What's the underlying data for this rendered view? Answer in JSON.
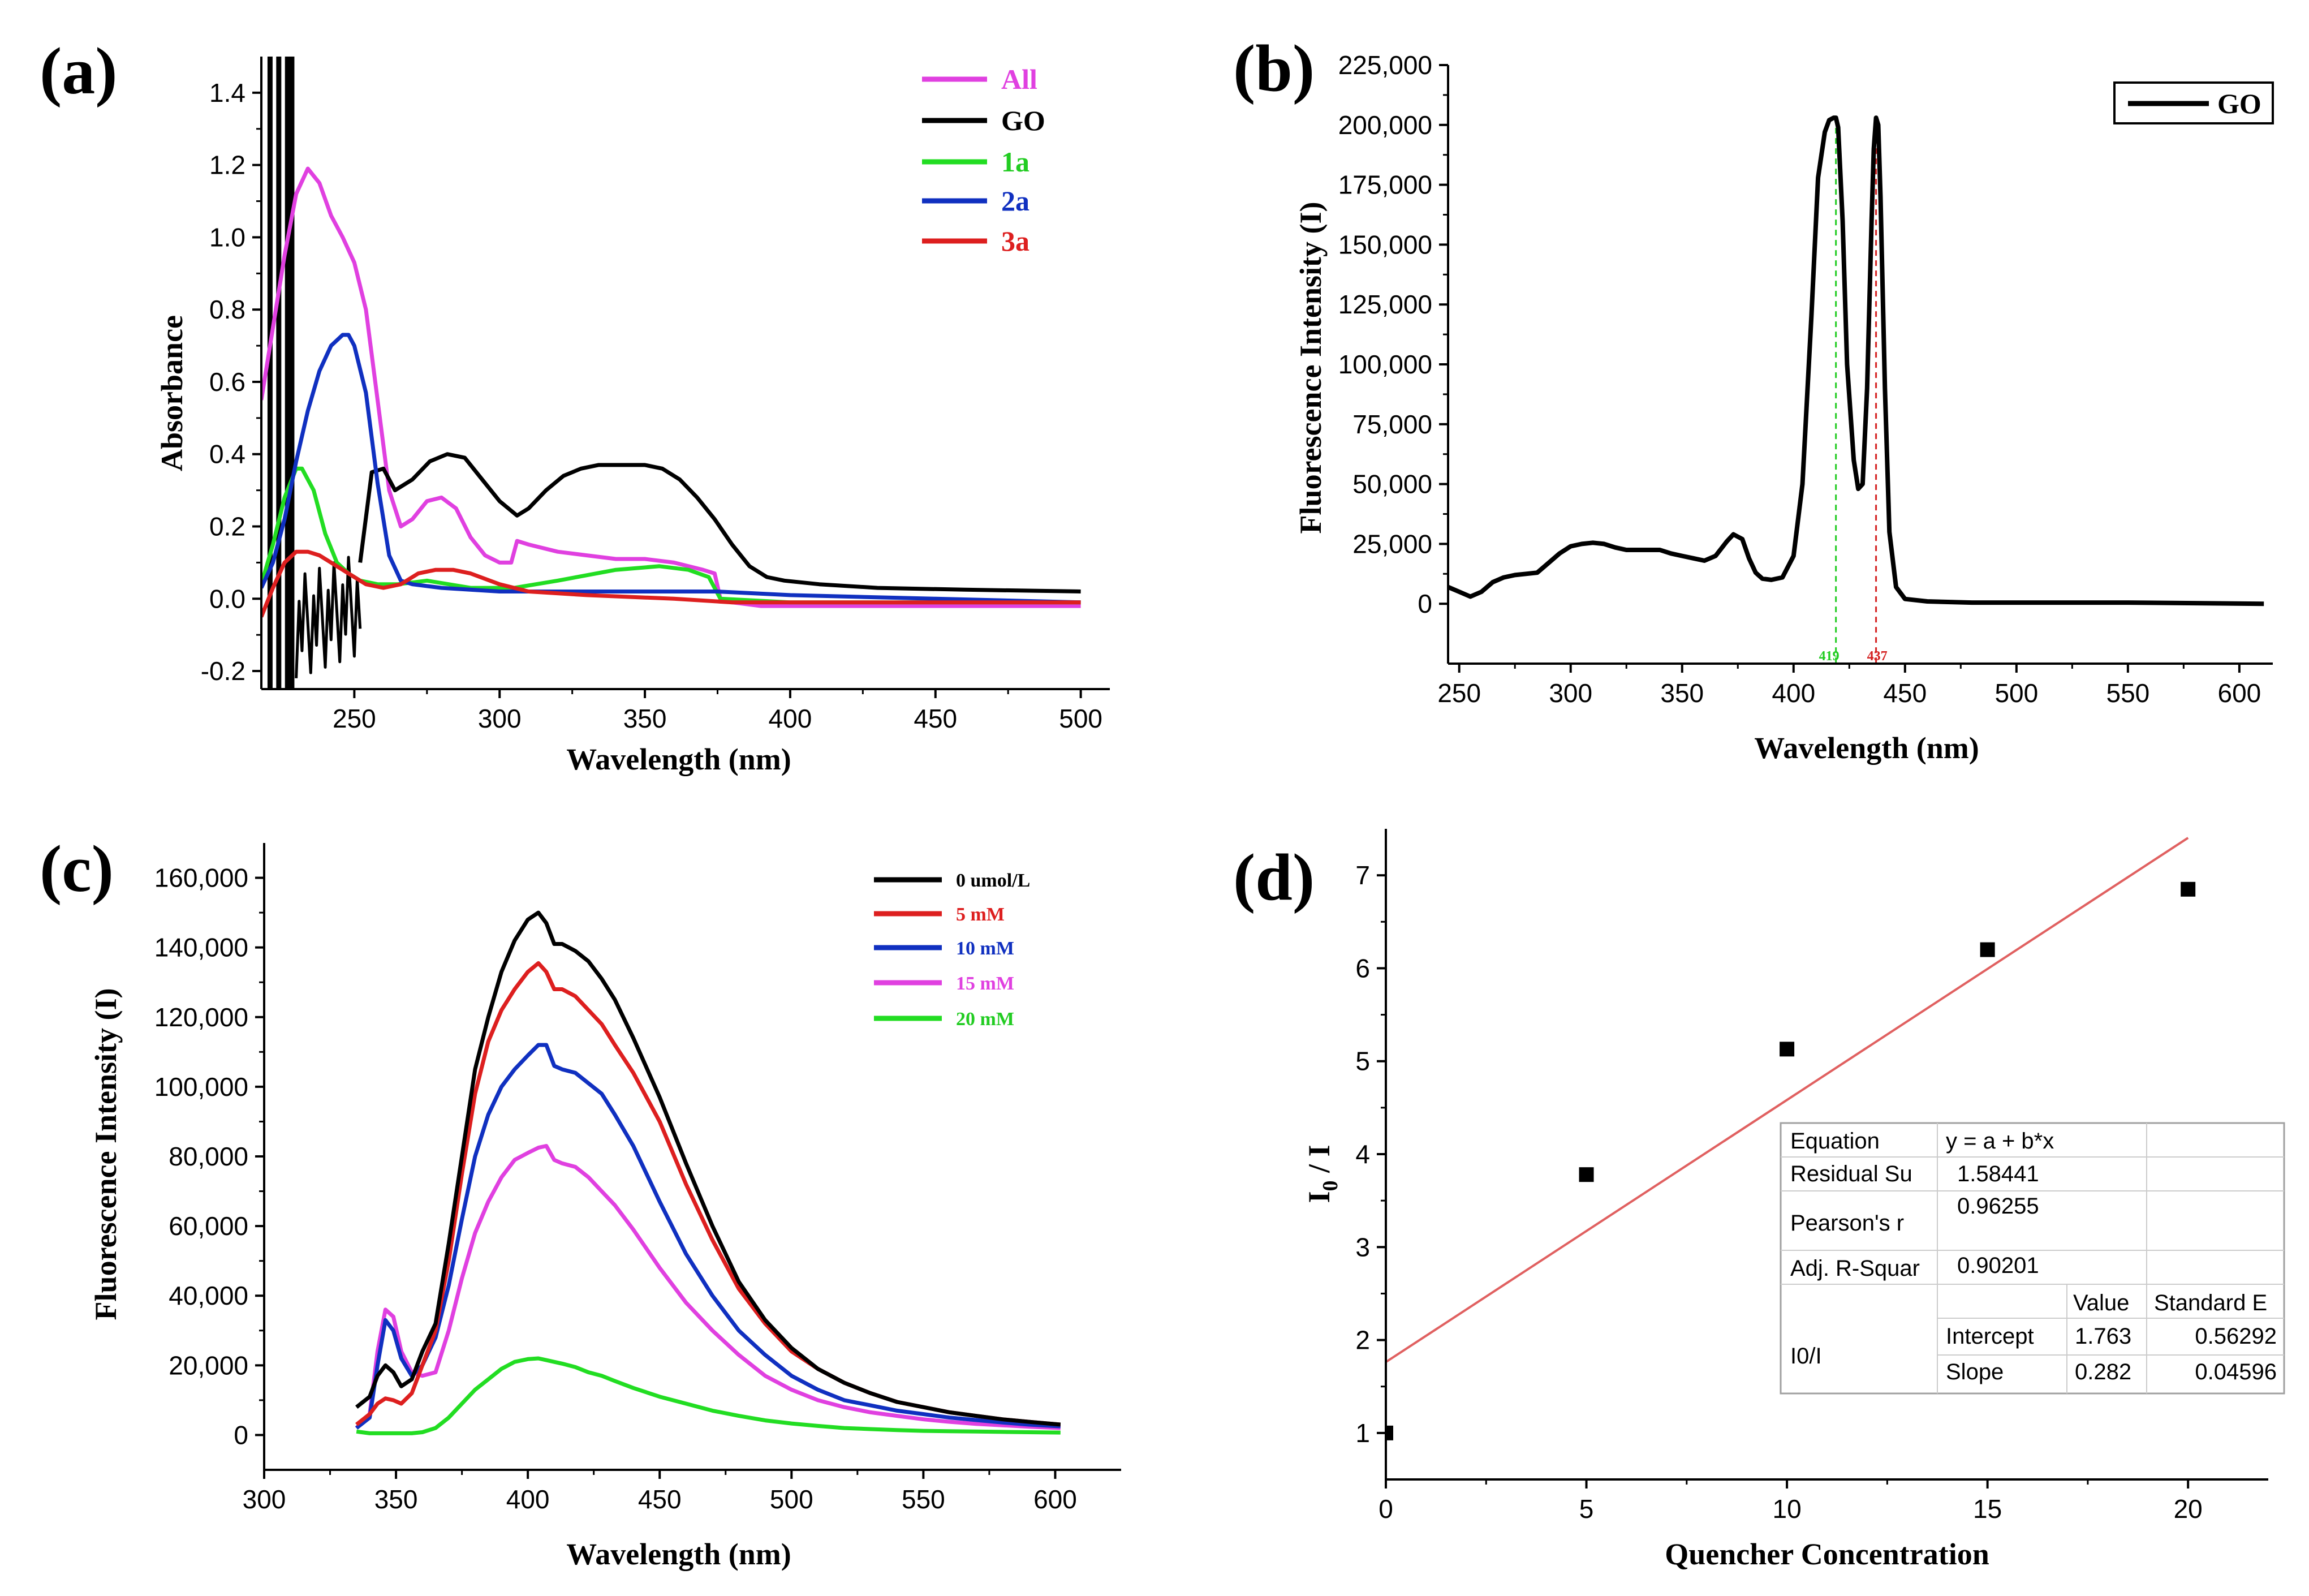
{
  "colors": {
    "black": "#000000",
    "magenta": "#e040e0",
    "green": "#22dd22",
    "blue": "#1030c0",
    "red": "#dd1f1f",
    "fit": "#e06060",
    "green_text": "#22cc22",
    "red_text": "#d42020",
    "blue_text": "#1030c0"
  },
  "chart_data": [
    {
      "id": "a",
      "panel_label": "(a)",
      "type": "line",
      "xlabel": "Wavelength (nm)",
      "ylabel": "Absorbance",
      "xlim": [
        218,
        510
      ],
      "ylim": [
        -0.25,
        1.5
      ],
      "xticks": [
        250,
        300,
        350,
        400,
        450,
        500
      ],
      "yticks": [
        -0.2,
        0.0,
        0.2,
        0.4,
        0.6,
        0.8,
        1.0,
        1.2,
        1.4
      ],
      "ytick_labels": [
        "-0.2",
        "0.0",
        "0.2",
        "0.4",
        "0.6",
        "0.8",
        "1.0",
        "1.2",
        "1.4"
      ],
      "legend": [
        "All",
        "GO",
        "1a",
        "2a",
        "3a"
      ],
      "series": [
        {
          "name": "All",
          "color": "magenta",
          "x": [
            218,
            222,
            226,
            230,
            234,
            238,
            242,
            246,
            250,
            254,
            258,
            262,
            266,
            270,
            275,
            280,
            285,
            290,
            295,
            300,
            304,
            306,
            310,
            320,
            330,
            340,
            350,
            360,
            370,
            374,
            376,
            380,
            390,
            400,
            420,
            450,
            480,
            500
          ],
          "y": [
            0.55,
            0.75,
            0.95,
            1.12,
            1.19,
            1.15,
            1.06,
            1.0,
            0.93,
            0.8,
            0.55,
            0.3,
            0.2,
            0.22,
            0.27,
            0.28,
            0.25,
            0.17,
            0.12,
            0.1,
            0.1,
            0.16,
            0.15,
            0.13,
            0.12,
            0.11,
            0.11,
            0.1,
            0.08,
            0.07,
            0.0,
            -0.01,
            -0.02,
            -0.02,
            -0.02,
            -0.02,
            -0.02,
            -0.02
          ]
        },
        {
          "name": "GO",
          "color": "black",
          "x": [
            252,
            256,
            260,
            264,
            270,
            276,
            282,
            288,
            294,
            300,
            306,
            310,
            316,
            322,
            328,
            334,
            340,
            346,
            350,
            356,
            362,
            368,
            374,
            380,
            386,
            392,
            398,
            410,
            430,
            460,
            500
          ],
          "y": [
            0.1,
            0.35,
            0.36,
            0.3,
            0.33,
            0.38,
            0.4,
            0.39,
            0.33,
            0.27,
            0.23,
            0.25,
            0.3,
            0.34,
            0.36,
            0.37,
            0.37,
            0.37,
            0.37,
            0.36,
            0.33,
            0.28,
            0.22,
            0.15,
            0.09,
            0.06,
            0.05,
            0.04,
            0.03,
            0.025,
            0.02
          ]
        },
        {
          "name": "1a",
          "color": "green",
          "x": [
            218,
            222,
            226,
            230,
            232,
            236,
            240,
            244,
            248,
            252,
            258,
            265,
            275,
            290,
            305,
            320,
            340,
            355,
            365,
            372,
            376,
            400,
            450,
            500
          ],
          "y": [
            0.04,
            0.15,
            0.28,
            0.36,
            0.36,
            0.3,
            0.18,
            0.1,
            0.07,
            0.05,
            0.04,
            0.04,
            0.05,
            0.03,
            0.03,
            0.05,
            0.08,
            0.09,
            0.08,
            0.06,
            0.0,
            -0.01,
            -0.01,
            -0.01
          ]
        },
        {
          "name": "2a",
          "color": "blue",
          "x": [
            218,
            222,
            226,
            230,
            234,
            238,
            242,
            246,
            248,
            250,
            254,
            258,
            262,
            266,
            270,
            280,
            300,
            320,
            350,
            375,
            400,
            450,
            500
          ],
          "y": [
            0.03,
            0.1,
            0.22,
            0.38,
            0.52,
            0.63,
            0.7,
            0.73,
            0.73,
            0.7,
            0.57,
            0.32,
            0.12,
            0.05,
            0.04,
            0.03,
            0.02,
            0.02,
            0.02,
            0.02,
            0.01,
            0.0,
            -0.01
          ]
        },
        {
          "name": "3a",
          "color": "red",
          "x": [
            218,
            222,
            226,
            230,
            234,
            238,
            242,
            248,
            254,
            260,
            266,
            272,
            278,
            284,
            290,
            300,
            310,
            330,
            360,
            380,
            420,
            460,
            500
          ],
          "y": [
            -0.05,
            0.03,
            0.1,
            0.13,
            0.13,
            0.12,
            0.1,
            0.07,
            0.04,
            0.03,
            0.04,
            0.07,
            0.08,
            0.08,
            0.07,
            0.04,
            0.02,
            0.01,
            0.0,
            -0.01,
            -0.01,
            -0.01,
            -0.01
          ]
        }
      ]
    },
    {
      "id": "b",
      "panel_label": "(b)",
      "type": "line",
      "xlabel": "Wavelength (nm)",
      "ylabel": "Fluorescence Intensity (I)",
      "xlim": [
        245,
        615
      ],
      "ylim": [
        -25000,
        225000
      ],
      "xticks": [
        250,
        300,
        350,
        400,
        450,
        500,
        550,
        600
      ],
      "yticks": [
        0,
        25000,
        50000,
        75000,
        100000,
        125000,
        150000,
        175000,
        200000,
        225000
      ],
      "ytick_labels": [
        "0",
        "25,000",
        "50,000",
        "75,000",
        "100,000",
        "125,000",
        "150,000",
        "175,000",
        "200,000",
        "225,000"
      ],
      "legend": [
        "GO"
      ],
      "annotations": [
        {
          "x": 419,
          "text": "419",
          "color": "green_text"
        },
        {
          "x": 437,
          "text": "437",
          "color": "red_text"
        }
      ],
      "series": [
        {
          "name": "GO",
          "color": "black",
          "x": [
            245,
            250,
            255,
            260,
            265,
            270,
            275,
            280,
            285,
            290,
            295,
            300,
            305,
            310,
            315,
            320,
            325,
            330,
            335,
            340,
            345,
            350,
            355,
            360,
            365,
            370,
            373,
            377,
            380,
            383,
            386,
            390,
            395,
            400,
            404,
            408,
            411,
            414,
            416,
            418,
            419,
            420,
            422,
            424,
            427,
            429,
            431,
            433,
            435,
            436,
            437,
            438,
            439,
            441,
            443,
            446,
            450,
            460,
            480,
            500,
            550,
            611
          ],
          "y": [
            7000,
            5000,
            3000,
            5000,
            9000,
            11000,
            12000,
            12500,
            13000,
            17000,
            21000,
            24000,
            25000,
            25500,
            25000,
            23500,
            22500,
            22500,
            22500,
            22500,
            21000,
            20000,
            19000,
            18000,
            20000,
            26000,
            29000,
            27000,
            19000,
            13000,
            10500,
            10000,
            11000,
            20000,
            50000,
            120000,
            178000,
            197000,
            202000,
            203000,
            203000,
            199000,
            160000,
            100000,
            60000,
            48000,
            50000,
            90000,
            160000,
            190000,
            203000,
            200000,
            170000,
            90000,
            30000,
            7000,
            2000,
            1000,
            500,
            500,
            500,
            0
          ]
        }
      ]
    },
    {
      "id": "c",
      "panel_label": "(c)",
      "type": "line",
      "xlabel": "Wavelength (nm)",
      "ylabel": "Fluorescence Intensity (I)",
      "xlim": [
        300,
        625
      ],
      "ylim": [
        -10000,
        170000
      ],
      "xticks": [
        300,
        350,
        400,
        450,
        500,
        550,
        600
      ],
      "yticks": [
        0,
        20000,
        40000,
        60000,
        80000,
        100000,
        120000,
        140000,
        160000
      ],
      "ytick_labels": [
        "0",
        "20,000",
        "40,000",
        "60,000",
        "80,000",
        "100,000",
        "120,000",
        "140,000",
        "160,000"
      ],
      "legend": [
        "0 umol/L",
        "5 mM",
        "10 mM",
        "15 mM",
        "20 mM"
      ],
      "x": [
        335,
        340,
        343,
        346,
        349,
        352,
        356,
        360,
        365,
        370,
        375,
        380,
        385,
        390,
        395,
        400,
        404,
        407,
        410,
        413,
        418,
        423,
        428,
        433,
        440,
        450,
        460,
        470,
        480,
        490,
        500,
        510,
        520,
        530,
        540,
        550,
        560,
        570,
        580,
        590,
        602
      ],
      "series": [
        {
          "name": "0 umol/L",
          "color": "black",
          "values": [
            8000,
            11000,
            17000,
            20000,
            18000,
            14000,
            16000,
            24000,
            32000,
            55000,
            80000,
            105000,
            120000,
            133000,
            142000,
            148000,
            150000,
            147000,
            141000,
            141000,
            139000,
            136000,
            131000,
            125000,
            114000,
            97000,
            78000,
            60000,
            44000,
            33000,
            25000,
            19000,
            15000,
            12000,
            9500,
            8000,
            6500,
            5500,
            4500,
            3800,
            3000
          ]
        },
        {
          "name": "5 mM",
          "color": "red",
          "values": [
            3000,
            6000,
            9000,
            10500,
            10000,
            9000,
            12000,
            20000,
            30000,
            50000,
            75000,
            98000,
            113000,
            122000,
            128000,
            133000,
            135500,
            133000,
            128000,
            128000,
            126000,
            122000,
            118000,
            112000,
            104000,
            90000,
            72000,
            56000,
            42000,
            32000,
            24000,
            19000,
            15000,
            12000,
            9500,
            8000,
            6500,
            5500,
            4500,
            3800,
            3000
          ]
        },
        {
          "name": "10 mM",
          "color": "blue",
          "values": [
            2000,
            5000,
            20000,
            33000,
            30000,
            22000,
            17000,
            20000,
            28000,
            43000,
            62000,
            80000,
            92000,
            100000,
            105000,
            109000,
            112000,
            112000,
            106000,
            105000,
            104000,
            101000,
            98000,
            92000,
            83000,
            67000,
            52000,
            40000,
            30000,
            23000,
            17000,
            13000,
            10000,
            8500,
            7000,
            6000,
            5000,
            4300,
            3600,
            3000,
            2500
          ]
        },
        {
          "name": "15 mM",
          "color": "magenta",
          "values": [
            2000,
            6000,
            24000,
            36000,
            34000,
            24000,
            18000,
            17000,
            18000,
            30000,
            45000,
            58000,
            67000,
            74000,
            79000,
            81000,
            82500,
            83000,
            79000,
            78000,
            77000,
            74000,
            70000,
            66000,
            59000,
            48000,
            38000,
            30000,
            23000,
            17000,
            13000,
            10000,
            8000,
            6500,
            5500,
            4500,
            3800,
            3200,
            2800,
            2400,
            2000
          ]
        },
        {
          "name": "20 mM",
          "color": "green",
          "values": [
            1000,
            500,
            500,
            500,
            500,
            500,
            500,
            800,
            2000,
            5000,
            9000,
            13000,
            16000,
            19000,
            21000,
            21800,
            22000,
            21500,
            21000,
            20500,
            19500,
            18000,
            17000,
            15500,
            13500,
            11000,
            9000,
            7000,
            5500,
            4200,
            3300,
            2600,
            2000,
            1700,
            1400,
            1200,
            1100,
            1000,
            900,
            800,
            700
          ]
        }
      ]
    },
    {
      "id": "d",
      "panel_label": "(d)",
      "type": "scatter",
      "xlabel": "Quencher Concentration",
      "ylabel_main": "I",
      "ylabel_sub": "0",
      "ylabel_rest": " / I",
      "xlim": [
        0,
        22
      ],
      "ylim": [
        0.5,
        7.5
      ],
      "xticks": [
        0,
        5,
        10,
        15,
        20
      ],
      "yticks": [
        1,
        2,
        3,
        4,
        5,
        6,
        7
      ],
      "points": {
        "x": [
          0,
          5,
          10,
          15,
          20
        ],
        "y": [
          1.0,
          3.78,
          5.13,
          6.2,
          6.85
        ]
      },
      "fit": {
        "intercept": 1.763,
        "slope": 0.282,
        "x_range": [
          0,
          20
        ],
        "color": "fit"
      },
      "stats": {
        "equation_label": "Equation",
        "equation_value": "y = a + b*x",
        "residual_label": "Residual Su",
        "residual_value": "1.58441",
        "pearson_label": "Pearson's r",
        "pearson_value": "0.96255",
        "adj_label": "Adj. R-Squar",
        "adj_value": "0.90201",
        "value_header": "Value",
        "stderr_header": "Standard E",
        "row_label": "I0/I",
        "intercept_label": "Intercept",
        "intercept_value": "1.763",
        "intercept_se": "0.56292",
        "slope_label": "Slope",
        "slope_value": "0.282",
        "slope_se": "0.04596"
      }
    }
  ]
}
